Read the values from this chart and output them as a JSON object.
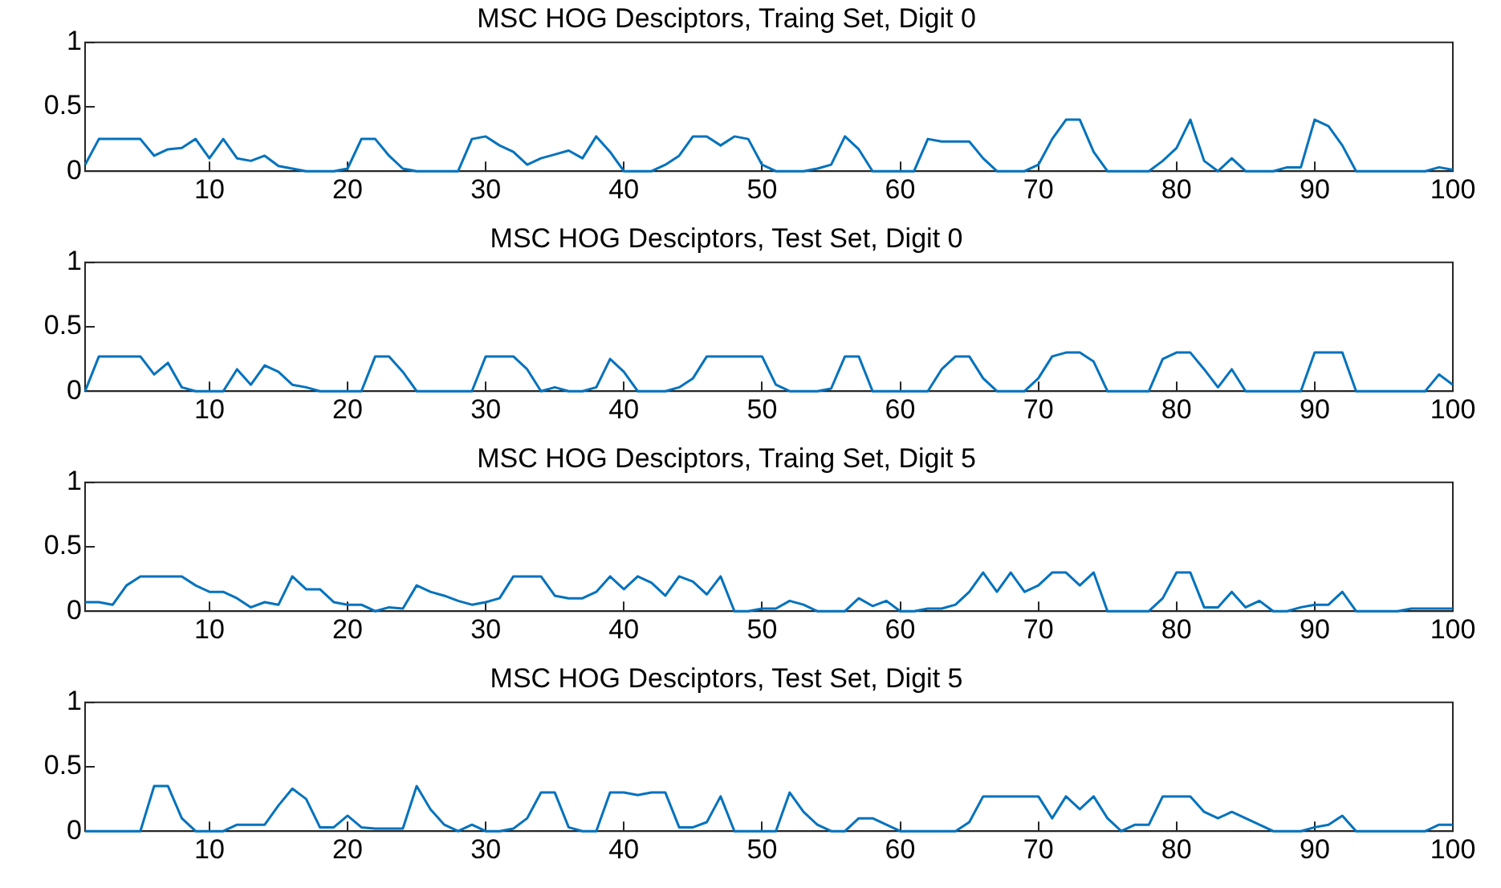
{
  "chart_data": [
    {
      "type": "line",
      "title": "MSC HOG Desciptors, Traing Set, Digit 0",
      "color": "#0072bd",
      "xlim": [
        1,
        100
      ],
      "xticks": [
        10,
        20,
        30,
        40,
        50,
        60,
        70,
        80,
        90,
        100
      ],
      "ylim": [
        0,
        1
      ],
      "yticks": [
        0,
        0.5,
        1
      ],
      "x": [
        1,
        2,
        3,
        4,
        5,
        6,
        7,
        8,
        9,
        10,
        11,
        12,
        13,
        14,
        15,
        16,
        17,
        18,
        19,
        20,
        21,
        22,
        23,
        24,
        25,
        26,
        27,
        28,
        29,
        30,
        31,
        32,
        33,
        34,
        35,
        36,
        37,
        38,
        39,
        40,
        41,
        42,
        43,
        44,
        45,
        46,
        47,
        48,
        49,
        50,
        51,
        52,
        53,
        54,
        55,
        56,
        57,
        58,
        59,
        60,
        61,
        62,
        63,
        64,
        65,
        66,
        67,
        68,
        69,
        70,
        71,
        72,
        73,
        74,
        75,
        76,
        77,
        78,
        79,
        80,
        81,
        82,
        83,
        84,
        85,
        86,
        87,
        88,
        89,
        90,
        91,
        92,
        93,
        94,
        95,
        96,
        97,
        98,
        99,
        100
      ],
      "values": [
        0.05,
        0.25,
        0.25,
        0.25,
        0.25,
        0.12,
        0.17,
        0.18,
        0.25,
        0.1,
        0.25,
        0.1,
        0.08,
        0.12,
        0.04,
        0.02,
        0,
        0,
        0,
        0.02,
        0.25,
        0.25,
        0.12,
        0.02,
        0,
        0,
        0,
        0,
        0.25,
        0.27,
        0.2,
        0.15,
        0.05,
        0.1,
        0.13,
        0.16,
        0.1,
        0.27,
        0.15,
        0,
        0,
        0,
        0.05,
        0.12,
        0.27,
        0.27,
        0.2,
        0.27,
        0.25,
        0.05,
        0,
        0,
        0,
        0.02,
        0.05,
        0.27,
        0.17,
        0,
        0,
        0,
        0,
        0.25,
        0.23,
        0.23,
        0.23,
        0.1,
        0,
        0,
        0,
        0.05,
        0.25,
        0.4,
        0.4,
        0.15,
        0,
        0,
        0,
        0,
        0.08,
        0.18,
        0.4,
        0.08,
        0,
        0.1,
        0,
        0,
        0,
        0.03,
        0.03,
        0.4,
        0.35,
        0.2,
        0,
        0,
        0,
        0,
        0,
        0,
        0.03,
        0.01
      ]
    },
    {
      "type": "line",
      "title": "MSC HOG Desciptors, Test Set, Digit 0",
      "color": "#0072bd",
      "xlim": [
        1,
        100
      ],
      "xticks": [
        10,
        20,
        30,
        40,
        50,
        60,
        70,
        80,
        90,
        100
      ],
      "ylim": [
        0,
        1
      ],
      "yticks": [
        0,
        0.5,
        1
      ],
      "x": [
        1,
        2,
        3,
        4,
        5,
        6,
        7,
        8,
        9,
        10,
        11,
        12,
        13,
        14,
        15,
        16,
        17,
        18,
        19,
        20,
        21,
        22,
        23,
        24,
        25,
        26,
        27,
        28,
        29,
        30,
        31,
        32,
        33,
        34,
        35,
        36,
        37,
        38,
        39,
        40,
        41,
        42,
        43,
        44,
        45,
        46,
        47,
        48,
        49,
        50,
        51,
        52,
        53,
        54,
        55,
        56,
        57,
        58,
        59,
        60,
        61,
        62,
        63,
        64,
        65,
        66,
        67,
        68,
        69,
        70,
        71,
        72,
        73,
        74,
        75,
        76,
        77,
        78,
        79,
        80,
        81,
        82,
        83,
        84,
        85,
        86,
        87,
        88,
        89,
        90,
        91,
        92,
        93,
        94,
        95,
        96,
        97,
        98,
        99,
        100
      ],
      "values": [
        0,
        0.27,
        0.27,
        0.27,
        0.27,
        0.13,
        0.22,
        0.03,
        0,
        0,
        0,
        0.17,
        0.05,
        0.2,
        0.15,
        0.05,
        0.03,
        0,
        0,
        0,
        0,
        0.27,
        0.27,
        0.15,
        0,
        0,
        0,
        0,
        0,
        0.27,
        0.27,
        0.27,
        0.17,
        0,
        0.03,
        0,
        0,
        0.03,
        0.25,
        0.15,
        0,
        0,
        0,
        0.03,
        0.1,
        0.27,
        0.27,
        0.27,
        0.27,
        0.27,
        0.05,
        0,
        0,
        0,
        0.02,
        0.27,
        0.27,
        0,
        0,
        0,
        0,
        0,
        0.17,
        0.27,
        0.27,
        0.1,
        0,
        0,
        0,
        0.1,
        0.27,
        0.3,
        0.3,
        0.23,
        0,
        0,
        0,
        0,
        0.25,
        0.3,
        0.3,
        0.17,
        0.03,
        0.17,
        0,
        0,
        0,
        0,
        0,
        0.3,
        0.3,
        0.3,
        0,
        0,
        0,
        0,
        0,
        0,
        0.13,
        0.05
      ]
    },
    {
      "type": "line",
      "title": "MSC HOG Desciptors, Traing Set, Digit 5",
      "color": "#0072bd",
      "xlim": [
        1,
        100
      ],
      "xticks": [
        10,
        20,
        30,
        40,
        50,
        60,
        70,
        80,
        90,
        100
      ],
      "ylim": [
        0,
        1
      ],
      "yticks": [
        0,
        0.5,
        1
      ],
      "x": [
        1,
        2,
        3,
        4,
        5,
        6,
        7,
        8,
        9,
        10,
        11,
        12,
        13,
        14,
        15,
        16,
        17,
        18,
        19,
        20,
        21,
        22,
        23,
        24,
        25,
        26,
        27,
        28,
        29,
        30,
        31,
        32,
        33,
        34,
        35,
        36,
        37,
        38,
        39,
        40,
        41,
        42,
        43,
        44,
        45,
        46,
        47,
        48,
        49,
        50,
        51,
        52,
        53,
        54,
        55,
        56,
        57,
        58,
        59,
        60,
        61,
        62,
        63,
        64,
        65,
        66,
        67,
        68,
        69,
        70,
        71,
        72,
        73,
        74,
        75,
        76,
        77,
        78,
        79,
        80,
        81,
        82,
        83,
        84,
        85,
        86,
        87,
        88,
        89,
        90,
        91,
        92,
        93,
        94,
        95,
        96,
        97,
        98,
        99,
        100
      ],
      "values": [
        0.07,
        0.07,
        0.05,
        0.2,
        0.27,
        0.27,
        0.27,
        0.27,
        0.2,
        0.15,
        0.15,
        0.1,
        0.03,
        0.07,
        0.05,
        0.27,
        0.17,
        0.17,
        0.07,
        0.05,
        0.05,
        0,
        0.03,
        0.02,
        0.2,
        0.15,
        0.12,
        0.08,
        0.05,
        0.07,
        0.1,
        0.27,
        0.27,
        0.27,
        0.12,
        0.1,
        0.1,
        0.15,
        0.27,
        0.17,
        0.27,
        0.22,
        0.12,
        0.27,
        0.23,
        0.13,
        0.27,
        0,
        0,
        0.02,
        0.02,
        0.08,
        0.05,
        0,
        0,
        0,
        0.1,
        0.04,
        0.08,
        0,
        0,
        0.02,
        0.02,
        0.05,
        0.15,
        0.3,
        0.15,
        0.3,
        0.15,
        0.2,
        0.3,
        0.3,
        0.2,
        0.3,
        0,
        0,
        0,
        0,
        0.1,
        0.3,
        0.3,
        0.03,
        0.03,
        0.15,
        0.03,
        0.08,
        0,
        0,
        0.03,
        0.05,
        0.05,
        0.15,
        0,
        0,
        0,
        0,
        0.02,
        0.02,
        0.02,
        0.02
      ]
    },
    {
      "type": "line",
      "title": "MSC HOG Desciptors, Test Set, Digit 5",
      "color": "#0072bd",
      "xlim": [
        1,
        100
      ],
      "xticks": [
        10,
        20,
        30,
        40,
        50,
        60,
        70,
        80,
        90,
        100
      ],
      "ylim": [
        0,
        1
      ],
      "yticks": [
        0,
        0.5,
        1
      ],
      "x": [
        1,
        2,
        3,
        4,
        5,
        6,
        7,
        8,
        9,
        10,
        11,
        12,
        13,
        14,
        15,
        16,
        17,
        18,
        19,
        20,
        21,
        22,
        23,
        24,
        25,
        26,
        27,
        28,
        29,
        30,
        31,
        32,
        33,
        34,
        35,
        36,
        37,
        38,
        39,
        40,
        41,
        42,
        43,
        44,
        45,
        46,
        47,
        48,
        49,
        50,
        51,
        52,
        53,
        54,
        55,
        56,
        57,
        58,
        59,
        60,
        61,
        62,
        63,
        64,
        65,
        66,
        67,
        68,
        69,
        70,
        71,
        72,
        73,
        74,
        75,
        76,
        77,
        78,
        79,
        80,
        81,
        82,
        83,
        84,
        85,
        86,
        87,
        88,
        89,
        90,
        91,
        92,
        93,
        94,
        95,
        96,
        97,
        98,
        99,
        100
      ],
      "values": [
        0,
        0,
        0,
        0,
        0,
        0.35,
        0.35,
        0.1,
        0,
        0,
        0,
        0.05,
        0.05,
        0.05,
        0.2,
        0.33,
        0.25,
        0.03,
        0.03,
        0.12,
        0.03,
        0.02,
        0.02,
        0.02,
        0.35,
        0.17,
        0.05,
        0,
        0.05,
        0,
        0,
        0.02,
        0.1,
        0.3,
        0.3,
        0.03,
        0,
        0,
        0.3,
        0.3,
        0.28,
        0.3,
        0.3,
        0.03,
        0.03,
        0.07,
        0.27,
        0,
        0,
        0,
        0,
        0.3,
        0.15,
        0.05,
        0,
        0,
        0.1,
        0.1,
        0.05,
        0,
        0,
        0,
        0,
        0,
        0.07,
        0.27,
        0.27,
        0.27,
        0.27,
        0.27,
        0.1,
        0.27,
        0.17,
        0.27,
        0.1,
        0,
        0.05,
        0.05,
        0.27,
        0.27,
        0.27,
        0.15,
        0.1,
        0.15,
        0.1,
        0.05,
        0,
        0,
        0,
        0.03,
        0.05,
        0.12,
        0,
        0,
        0,
        0,
        0,
        0,
        0.05,
        0.05
      ]
    }
  ]
}
